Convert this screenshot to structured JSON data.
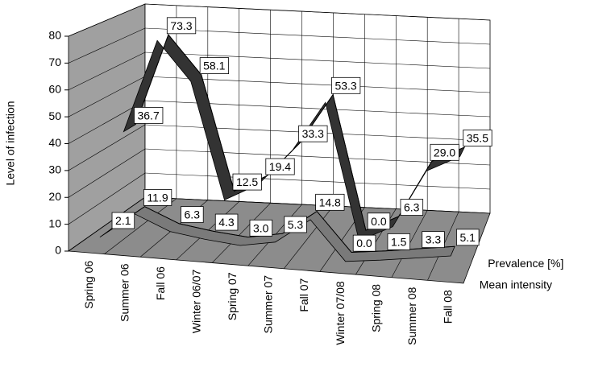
{
  "chart_data": {
    "type": "line3d",
    "y_label": "Level of infection",
    "categories": [
      "Spring 06",
      "Summer 06",
      "Fall 06",
      "Winter 06/07",
      "Spring 07",
      "Summer 07",
      "Fall 07",
      "Winter 07/08",
      "Spring 08",
      "Summer 08",
      "Fall 08"
    ],
    "series": [
      {
        "name": "Prevalence [%]",
        "color": "#333333",
        "values": [
          36.7,
          73.3,
          58.1,
          12.5,
          19.4,
          33.3,
          53.3,
          0.0,
          6.3,
          29.0,
          35.5
        ],
        "value_labels": [
          "36.7",
          "73.3",
          "58.1",
          "12.5",
          "19.4",
          "33.3",
          "53.3",
          "0.0",
          "6.3",
          "29.0",
          "35.5"
        ]
      },
      {
        "name": "Mean intensity",
        "color": "#7a7a7a",
        "values": [
          2.1,
          11.9,
          6.3,
          4.3,
          3.0,
          5.3,
          14.8,
          0.0,
          1.5,
          3.3,
          5.1
        ],
        "value_labels": [
          "2.1",
          "11.9",
          "6.3",
          "4.3",
          "3.0",
          "5.3",
          "14.8",
          "0.0",
          "1.5",
          "3.3",
          "5.1"
        ]
      }
    ],
    "ylim": [
      0,
      80
    ],
    "yticks": [
      0,
      10,
      20,
      30,
      40,
      50,
      60,
      70,
      80
    ],
    "grid": true
  }
}
